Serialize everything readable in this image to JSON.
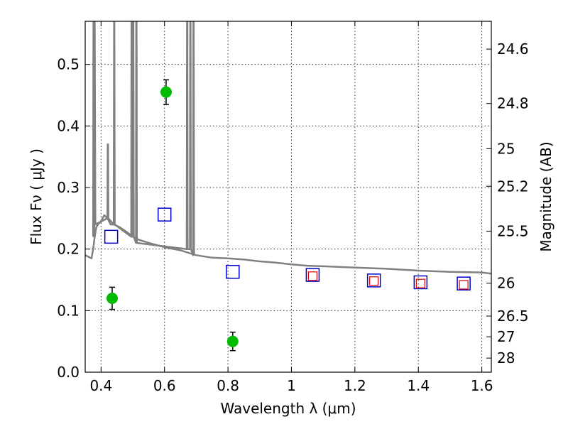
{
  "chart_data": {
    "type": "scatter",
    "title": "",
    "xlabel": "Wavelength  λ (μm)",
    "ylabel": "Flux  Fν  ( μJy )",
    "y2label": "Magnitude (AB)",
    "xlim": [
      0.35,
      1.63
    ],
    "ylim": [
      0.0,
      0.57
    ],
    "grid": true,
    "x_ticks": [
      0.4,
      0.6,
      0.8,
      1.0,
      1.2,
      1.4,
      1.6
    ],
    "x_tick_labels": [
      "0.4",
      "0.6",
      "0.8",
      "1",
      "1.2",
      "1.4",
      "1.6"
    ],
    "y_ticks": [
      0.0,
      0.1,
      0.2,
      0.3,
      0.4,
      0.5
    ],
    "y_tick_labels": [
      "0.0",
      "0.1",
      "0.2",
      "0.3",
      "0.4",
      "0.5"
    ],
    "y2_ticks": [
      {
        "mag": 24.6,
        "label": "24.6"
      },
      {
        "mag": 24.8,
        "label": "24.8"
      },
      {
        "mag": 25.0,
        "label": "25"
      },
      {
        "mag": 25.2,
        "label": "25.2"
      },
      {
        "mag": 25.5,
        "label": "25.5"
      },
      {
        "mag": 26.0,
        "label": "26"
      },
      {
        "mag": 26.5,
        "label": "26.5"
      },
      {
        "mag": 27.0,
        "label": "27"
      },
      {
        "mag": 28.0,
        "label": "28"
      }
    ],
    "colors": {
      "spectrum": "#808080",
      "photometry": "#00bb00",
      "model_squares": "#0000cc",
      "model_squares_inner": "#dd0000",
      "error_bars": "#000000"
    },
    "series": [
      {
        "kind": "line",
        "x": [
          0.35,
          0.37,
          0.375,
          0.38,
          0.385,
          0.39,
          0.4,
          0.41,
          0.42,
          0.43,
          0.44,
          0.46,
          0.48,
          0.5,
          0.52,
          0.55,
          0.6,
          0.65,
          0.7,
          0.75,
          0.8,
          0.85,
          0.9,
          0.95,
          1.0,
          1.05,
          1.1,
          1.2,
          1.3,
          1.4,
          1.5,
          1.6,
          1.63
        ],
        "y": [
          0.19,
          0.185,
          0.2,
          0.22,
          0.235,
          0.24,
          0.245,
          0.255,
          0.25,
          0.24,
          0.24,
          0.235,
          0.228,
          0.22,
          0.215,
          0.21,
          0.203,
          0.198,
          0.19,
          0.186,
          0.185,
          0.183,
          0.18,
          0.178,
          0.175,
          0.173,
          0.172,
          0.17,
          0.168,
          0.165,
          0.163,
          0.162,
          0.16
        ]
      },
      {
        "kind": "line",
        "x": [
          0.375,
          0.376,
          0.377,
          0.378,
          0.379,
          0.38,
          0.382,
          0.42,
          0.421,
          0.422,
          0.423,
          0.44,
          0.441,
          0.442,
          0.443,
          0.495,
          0.496,
          0.497,
          0.498,
          0.5,
          0.501,
          0.502,
          0.503,
          0.51,
          0.511,
          0.512,
          0.513,
          0.67,
          0.671,
          0.672,
          0.673,
          0.68,
          0.681,
          0.682,
          0.683,
          0.69,
          0.691,
          0.692,
          0.693
        ],
        "y": [
          0.22,
          0.57,
          0.57,
          0.22,
          0.24,
          0.57,
          0.24,
          0.25,
          0.37,
          0.37,
          0.25,
          0.24,
          0.57,
          0.57,
          0.24,
          0.22,
          0.57,
          0.57,
          0.22,
          0.22,
          0.57,
          0.57,
          0.22,
          0.21,
          0.57,
          0.57,
          0.21,
          0.2,
          0.57,
          0.57,
          0.2,
          0.2,
          0.57,
          0.57,
          0.2,
          0.19,
          0.57,
          0.57,
          0.19
        ]
      },
      {
        "kind": "points",
        "marker": "circle",
        "x": [
          0.435,
          0.605,
          0.815
        ],
        "y": [
          0.12,
          0.455,
          0.05
        ],
        "yerr": [
          0.018,
          0.02,
          0.015
        ]
      },
      {
        "kind": "points",
        "marker": "open-square",
        "x": [
          0.432,
          0.6,
          0.815,
          1.067,
          1.26,
          1.407,
          1.543
        ],
        "y": [
          0.22,
          0.256,
          0.163,
          0.158,
          0.149,
          0.146,
          0.144
        ]
      },
      {
        "kind": "points",
        "marker": "open-square-small",
        "x": [
          1.067,
          1.26,
          1.407,
          1.543
        ],
        "y": [
          0.156,
          0.148,
          0.144,
          0.142
        ]
      }
    ]
  }
}
